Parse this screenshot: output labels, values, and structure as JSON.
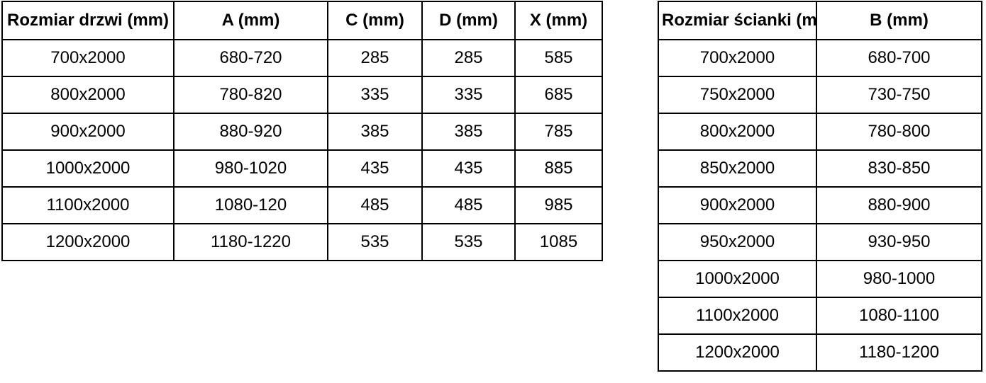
{
  "colors": {
    "border": "#000000",
    "text": "#000000",
    "background": "#ffffff"
  },
  "tables": [
    {
      "id": "doors",
      "headers": [
        "Rozmiar drzwi (mm)",
        "A (mm)",
        "C (mm)",
        "D (mm)",
        "X (mm)"
      ],
      "rows": [
        [
          "700x2000",
          "680-720",
          "285",
          "285",
          "585"
        ],
        [
          "800x2000",
          "780-820",
          "335",
          "335",
          "685"
        ],
        [
          "900x2000",
          "880-920",
          "385",
          "385",
          "785"
        ],
        [
          "1000x2000",
          "980-1020",
          "435",
          "435",
          "885"
        ],
        [
          "1100x2000",
          "1080-120",
          "485",
          "485",
          "985"
        ],
        [
          "1200x2000",
          "1180-1220",
          "535",
          "535",
          "1085"
        ]
      ]
    },
    {
      "id": "walls",
      "headers": [
        "Rozmiar ścianki (mm)",
        "B (mm)"
      ],
      "rows": [
        [
          "700x2000",
          "680-700"
        ],
        [
          "750x2000",
          "730-750"
        ],
        [
          "800x2000",
          "780-800"
        ],
        [
          "850x2000",
          "830-850"
        ],
        [
          "900x2000",
          "880-900"
        ],
        [
          "950x2000",
          "930-950"
        ],
        [
          "1000x2000",
          "980-1000"
        ],
        [
          "1100x2000",
          "1080-1100"
        ],
        [
          "1200x2000",
          "1180-1200"
        ]
      ]
    }
  ]
}
